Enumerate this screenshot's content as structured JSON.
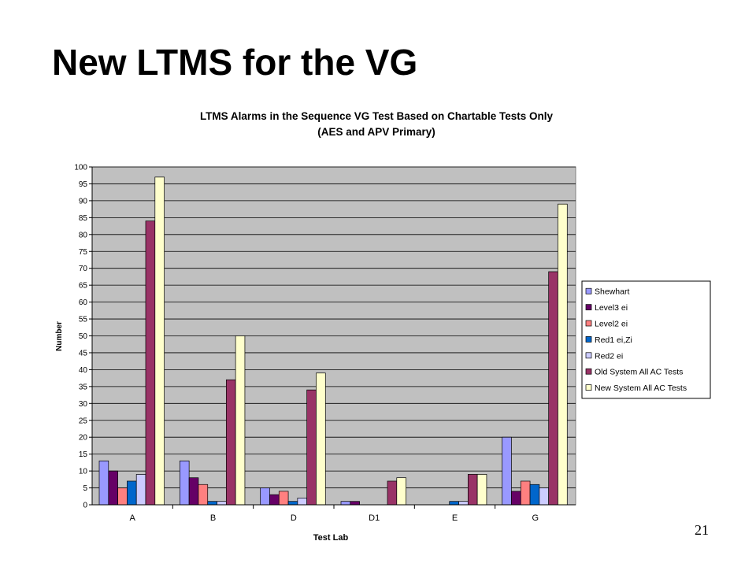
{
  "slide": {
    "title": "New LTMS for the VG",
    "page_number": "21"
  },
  "chart_data": {
    "type": "bar",
    "title": "LTMS Alarms in the Sequence VG Test Based on Chartable Tests Only",
    "subtitle": "(AES and APV Primary)",
    "xlabel": "Test Lab",
    "ylabel": "Number",
    "ylim": [
      0,
      100
    ],
    "ytick_step": 5,
    "grid": true,
    "legend_position": "right",
    "plot_background": "#C0C0C0",
    "categories": [
      "A",
      "B",
      "D",
      "D1",
      "E",
      "G"
    ],
    "series": [
      {
        "name": "Shewhart",
        "color": "#9999FF",
        "values": [
          13,
          13,
          5,
          1,
          0,
          20
        ]
      },
      {
        "name": "Level3 ei",
        "color": "#660066",
        "values": [
          10,
          8,
          3,
          1,
          0,
          4
        ]
      },
      {
        "name": "Level2 ei",
        "color": "#FF8080",
        "values": [
          5,
          6,
          4,
          0,
          0,
          7
        ]
      },
      {
        "name": "Red1 ei,Zi",
        "color": "#0066CC",
        "values": [
          7,
          1,
          1,
          0,
          1,
          6
        ]
      },
      {
        "name": "Red2 ei",
        "color": "#CCCCFF",
        "values": [
          9,
          1,
          2,
          0,
          1,
          5
        ]
      },
      {
        "name": "Old System All AC Tests",
        "color": "#993366",
        "values": [
          84,
          37,
          34,
          7,
          9,
          69
        ]
      },
      {
        "name": "New System All AC Tests",
        "color": "#FFFFCC",
        "values": [
          97,
          50,
          39,
          8,
          9,
          89
        ]
      }
    ]
  }
}
